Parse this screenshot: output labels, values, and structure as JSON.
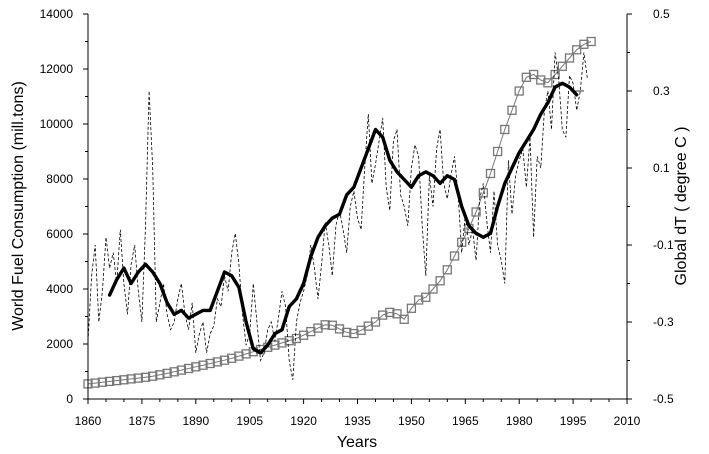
{
  "chart_data": {
    "type": "line",
    "title": "",
    "xlabel": "Years",
    "ylabel_left": "World Fuel Consumption (mill.tons)",
    "ylabel_right": "Global dT ( degree C )",
    "xlim": [
      1860,
      2010
    ],
    "ylim_left": [
      0,
      14000
    ],
    "ylim_right": [
      -0.5,
      0.5
    ],
    "x_ticks": [
      "1860",
      "1875",
      "1890",
      "1905",
      "1920",
      "1935",
      "1950",
      "1965",
      "1980",
      "1995",
      "2010"
    ],
    "y_left_ticks": [
      "0",
      "2000",
      "4000",
      "6000",
      "8000",
      "10000",
      "12000",
      "14000"
    ],
    "y_right_ticks": [
      "0.5",
      "0.3",
      "0.1",
      "-0.1",
      "-0.3",
      "-0.5"
    ],
    "grid": false,
    "legend": "none",
    "series": [
      {
        "axis": "left",
        "style": "square-markers",
        "color": "#777777",
        "x": [
          1860,
          1862,
          1864,
          1866,
          1868,
          1870,
          1872,
          1874,
          1876,
          1878,
          1880,
          1882,
          1884,
          1886,
          1888,
          1890,
          1892,
          1894,
          1896,
          1898,
          1900,
          1902,
          1904,
          1906,
          1908,
          1910,
          1912,
          1914,
          1916,
          1918,
          1920,
          1922,
          1924,
          1926,
          1928,
          1930,
          1932,
          1934,
          1936,
          1938,
          1940,
          1942,
          1944,
          1946,
          1948,
          1950,
          1952,
          1954,
          1956,
          1958,
          1960,
          1962,
          1964,
          1966,
          1968,
          1970,
          1972,
          1974,
          1976,
          1978,
          1980,
          1982,
          1984,
          1986,
          1988,
          1990,
          1992,
          1994,
          1996,
          1998,
          2000
        ],
        "values": [
          550,
          580,
          610,
          640,
          670,
          700,
          730,
          760,
          790,
          830,
          880,
          930,
          990,
          1050,
          1110,
          1170,
          1230,
          1290,
          1350,
          1410,
          1480,
          1560,
          1640,
          1720,
          1800,
          1880,
          1960,
          2040,
          2120,
          2200,
          2320,
          2450,
          2580,
          2700,
          2680,
          2550,
          2420,
          2380,
          2500,
          2650,
          2800,
          3050,
          3150,
          3100,
          2900,
          3300,
          3600,
          3700,
          4000,
          4300,
          4700,
          5200,
          5700,
          6200,
          6800,
          7500,
          8200,
          9000,
          9800,
          10500,
          11200,
          11700,
          11800,
          11600,
          11500,
          11800,
          12100,
          12400,
          12700,
          12900,
          13000
        ]
      },
      {
        "axis": "right",
        "style": "thick-line",
        "color": "#000000",
        "x": [
          1866,
          1868,
          1870,
          1872,
          1874,
          1876,
          1878,
          1880,
          1882,
          1884,
          1886,
          1888,
          1890,
          1892,
          1894,
          1896,
          1898,
          1900,
          1902,
          1904,
          1906,
          1908,
          1910,
          1912,
          1914,
          1916,
          1918,
          1920,
          1922,
          1924,
          1926,
          1928,
          1930,
          1932,
          1934,
          1936,
          1938,
          1940,
          1942,
          1944,
          1946,
          1948,
          1950,
          1952,
          1954,
          1956,
          1958,
          1960,
          1962,
          1964,
          1966,
          1968,
          1970,
          1972,
          1974,
          1976,
          1978,
          1980,
          1982,
          1984,
          1986,
          1988,
          1990,
          1992,
          1994,
          1996
        ],
        "values": [
          -0.23,
          -0.19,
          -0.16,
          -0.2,
          -0.17,
          -0.15,
          -0.17,
          -0.2,
          -0.25,
          -0.28,
          -0.27,
          -0.29,
          -0.28,
          -0.27,
          -0.27,
          -0.22,
          -0.17,
          -0.18,
          -0.21,
          -0.3,
          -0.37,
          -0.38,
          -0.36,
          -0.33,
          -0.32,
          -0.26,
          -0.24,
          -0.2,
          -0.13,
          -0.08,
          -0.05,
          -0.03,
          -0.02,
          0.03,
          0.05,
          0.1,
          0.15,
          0.2,
          0.18,
          0.12,
          0.09,
          0.07,
          0.05,
          0.08,
          0.09,
          0.08,
          0.06,
          0.08,
          0.07,
          0.0,
          -0.05,
          -0.07,
          -0.08,
          -0.07,
          0.0,
          0.06,
          0.1,
          0.14,
          0.17,
          0.2,
          0.24,
          0.27,
          0.31,
          0.32,
          0.31,
          0.29
        ]
      },
      {
        "axis": "right",
        "style": "dashed-line",
        "color": "#000000",
        "x": [
          1860,
          1861,
          1862,
          1863,
          1864,
          1865,
          1866,
          1867,
          1868,
          1869,
          1870,
          1871,
          1872,
          1873,
          1874,
          1875,
          1876,
          1877,
          1878,
          1879,
          1880,
          1881,
          1882,
          1883,
          1884,
          1885,
          1886,
          1887,
          1888,
          1889,
          1890,
          1891,
          1892,
          1893,
          1894,
          1895,
          1896,
          1897,
          1898,
          1899,
          1900,
          1901,
          1902,
          1903,
          1904,
          1905,
          1906,
          1907,
          1908,
          1909,
          1910,
          1911,
          1912,
          1913,
          1914,
          1915,
          1916,
          1917,
          1918,
          1919,
          1920,
          1921,
          1922,
          1923,
          1924,
          1925,
          1926,
          1927,
          1928,
          1929,
          1930,
          1931,
          1932,
          1933,
          1934,
          1935,
          1936,
          1937,
          1938,
          1939,
          1940,
          1941,
          1942,
          1943,
          1944,
          1945,
          1946,
          1947,
          1948,
          1949,
          1950,
          1951,
          1952,
          1953,
          1954,
          1955,
          1956,
          1957,
          1958,
          1959,
          1960,
          1961,
          1962,
          1963,
          1964,
          1965,
          1966,
          1967,
          1968,
          1969,
          1970,
          1971,
          1972,
          1973,
          1974,
          1975,
          1976,
          1977,
          1978,
          1979,
          1980,
          1981,
          1982,
          1983,
          1984,
          1985,
          1986,
          1987,
          1988,
          1989,
          1990,
          1991,
          1992,
          1993,
          1994,
          1995,
          1996,
          1997,
          1998,
          1999
        ],
        "values": [
          -0.35,
          -0.18,
          -0.1,
          -0.3,
          -0.22,
          -0.08,
          -0.16,
          -0.12,
          -0.2,
          -0.06,
          -0.2,
          -0.28,
          -0.15,
          -0.1,
          -0.22,
          -0.3,
          -0.05,
          0.3,
          0.1,
          -0.3,
          -0.25,
          -0.2,
          -0.28,
          -0.32,
          -0.3,
          -0.24,
          -0.2,
          -0.28,
          -0.32,
          -0.25,
          -0.38,
          -0.33,
          -0.3,
          -0.38,
          -0.33,
          -0.31,
          -0.24,
          -0.26,
          -0.18,
          -0.22,
          -0.12,
          -0.07,
          -0.15,
          -0.28,
          -0.36,
          -0.33,
          -0.2,
          -0.3,
          -0.4,
          -0.38,
          -0.32,
          -0.3,
          -0.35,
          -0.29,
          -0.22,
          -0.26,
          -0.4,
          -0.45,
          -0.3,
          -0.25,
          -0.22,
          -0.18,
          -0.1,
          -0.16,
          -0.24,
          -0.15,
          -0.04,
          -0.1,
          -0.18,
          -0.05,
          -0.01,
          -0.06,
          -0.12,
          0.0,
          0.04,
          -0.03,
          -0.06,
          0.1,
          0.24,
          0.06,
          0.11,
          0.17,
          0.23,
          0.05,
          -0.01,
          0.17,
          0.2,
          0.03,
          0.0,
          -0.05,
          0.1,
          0.16,
          0.13,
          -0.05,
          -0.18,
          0.08,
          0.0,
          0.15,
          0.2,
          0.06,
          0.02,
          0.08,
          0.13,
          0.03,
          -0.12,
          -0.02,
          -0.1,
          -0.06,
          -0.14,
          0.02,
          0.06,
          -0.04,
          -0.12,
          0.04,
          -0.1,
          -0.14,
          -0.2,
          0.12,
          -0.02,
          0.08,
          0.12,
          0.15,
          0.05,
          0.18,
          -0.08,
          0.13,
          0.1,
          0.25,
          0.3,
          0.2,
          0.4,
          0.33,
          0.2,
          0.18,
          0.34,
          0.32,
          0.25,
          0.3,
          0.4,
          0.33
        ]
      },
      {
        "axis": "right",
        "style": "thin-line",
        "color": "#000000",
        "x": [
          1995,
          1998
        ],
        "values": [
          0.3,
          0.3
        ]
      }
    ]
  }
}
